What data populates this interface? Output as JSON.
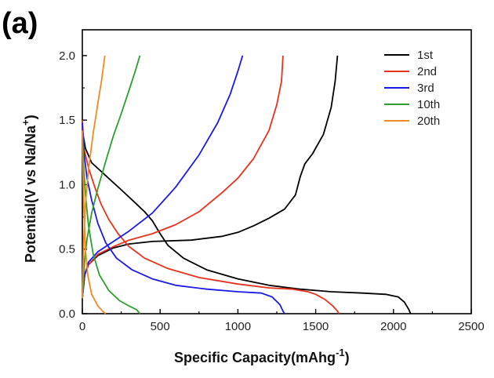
{
  "panel_label": "(a)",
  "chart_data": {
    "type": "line",
    "xlabel": "Specific Capacity(mAhg",
    "xlabel_sup": "-1",
    "xlabel_tail": ")",
    "ylabel": "Potential(V vs Na/Na",
    "ylabel_sup": "+",
    "ylabel_tail": ")",
    "xlim": [
      0,
      2500
    ],
    "ylim": [
      0,
      2.2
    ],
    "xticks": [
      0,
      500,
      1000,
      1500,
      2000,
      2500
    ],
    "xtick_labels": [
      "0",
      "500",
      "1000",
      "1500",
      "2000",
      "2500"
    ],
    "yticks": [
      0,
      0.5,
      1.0,
      1.5,
      2.0
    ],
    "ytick_labels": [
      "0.0",
      "0.5",
      "1.0",
      "1.5",
      "2.0"
    ],
    "grid": false,
    "legend_position": "top-right",
    "series": [
      {
        "name": "1st",
        "color": "#000000",
        "discharge": [
          [
            0,
            1.42
          ],
          [
            20,
            1.28
          ],
          [
            60,
            1.17
          ],
          [
            150,
            1.07
          ],
          [
            250,
            0.96
          ],
          [
            330,
            0.87
          ],
          [
            400,
            0.79
          ],
          [
            450,
            0.72
          ],
          [
            500,
            0.62
          ],
          [
            550,
            0.53
          ],
          [
            650,
            0.43
          ],
          [
            800,
            0.34
          ],
          [
            1000,
            0.27
          ],
          [
            1200,
            0.22
          ],
          [
            1400,
            0.19
          ],
          [
            1600,
            0.17
          ],
          [
            1800,
            0.16
          ],
          [
            1950,
            0.15
          ],
          [
            2030,
            0.13
          ],
          [
            2070,
            0.09
          ],
          [
            2100,
            0.03
          ],
          [
            2110,
            0
          ]
        ],
        "charge": [
          [
            0,
            0.12
          ],
          [
            15,
            0.3
          ],
          [
            40,
            0.38
          ],
          [
            100,
            0.45
          ],
          [
            200,
            0.51
          ],
          [
            300,
            0.54
          ],
          [
            450,
            0.56
          ],
          [
            700,
            0.57
          ],
          [
            900,
            0.6
          ],
          [
            1000,
            0.63
          ],
          [
            1100,
            0.68
          ],
          [
            1200,
            0.74
          ],
          [
            1300,
            0.81
          ],
          [
            1370,
            0.92
          ],
          [
            1400,
            1.06
          ],
          [
            1430,
            1.16
          ],
          [
            1480,
            1.24
          ],
          [
            1550,
            1.39
          ],
          [
            1600,
            1.6
          ],
          [
            1625,
            1.8
          ],
          [
            1640,
            2.0
          ]
        ]
      },
      {
        "name": "2nd",
        "color": "#e8321e",
        "discharge": [
          [
            0,
            1.5
          ],
          [
            10,
            1.28
          ],
          [
            40,
            1.13
          ],
          [
            80,
            0.98
          ],
          [
            120,
            0.85
          ],
          [
            170,
            0.73
          ],
          [
            230,
            0.62
          ],
          [
            300,
            0.52
          ],
          [
            400,
            0.43
          ],
          [
            550,
            0.35
          ],
          [
            750,
            0.28
          ],
          [
            1000,
            0.23
          ],
          [
            1200,
            0.2
          ],
          [
            1350,
            0.19
          ],
          [
            1450,
            0.17
          ],
          [
            1500,
            0.15
          ],
          [
            1560,
            0.11
          ],
          [
            1610,
            0.06
          ],
          [
            1640,
            0.02
          ],
          [
            1650,
            0
          ]
        ],
        "charge": [
          [
            0,
            0.12
          ],
          [
            15,
            0.3
          ],
          [
            40,
            0.38
          ],
          [
            100,
            0.46
          ],
          [
            200,
            0.52
          ],
          [
            300,
            0.57
          ],
          [
            450,
            0.62
          ],
          [
            600,
            0.69
          ],
          [
            750,
            0.79
          ],
          [
            900,
            0.94
          ],
          [
            1000,
            1.05
          ],
          [
            1100,
            1.2
          ],
          [
            1200,
            1.42
          ],
          [
            1250,
            1.62
          ],
          [
            1280,
            1.8
          ],
          [
            1290,
            2.0
          ]
        ]
      },
      {
        "name": "3rd",
        "color": "#1a1ae8",
        "discharge": [
          [
            0,
            1.48
          ],
          [
            10,
            1.25
          ],
          [
            30,
            1.05
          ],
          [
            60,
            0.88
          ],
          [
            100,
            0.7
          ],
          [
            150,
            0.55
          ],
          [
            220,
            0.43
          ],
          [
            320,
            0.34
          ],
          [
            450,
            0.27
          ],
          [
            600,
            0.22
          ],
          [
            800,
            0.19
          ],
          [
            1000,
            0.17
          ],
          [
            1150,
            0.16
          ],
          [
            1220,
            0.13
          ],
          [
            1270,
            0.07
          ],
          [
            1290,
            0.02
          ],
          [
            1300,
            0
          ]
        ],
        "charge": [
          [
            0,
            0.12
          ],
          [
            15,
            0.3
          ],
          [
            40,
            0.4
          ],
          [
            100,
            0.48
          ],
          [
            200,
            0.56
          ],
          [
            300,
            0.64
          ],
          [
            450,
            0.78
          ],
          [
            600,
            0.98
          ],
          [
            750,
            1.23
          ],
          [
            870,
            1.48
          ],
          [
            950,
            1.7
          ],
          [
            1000,
            1.88
          ],
          [
            1030,
            2.0
          ]
        ]
      },
      {
        "name": "10th",
        "color": "#2e9e2e",
        "discharge": [
          [
            0,
            1.4
          ],
          [
            8,
            1.15
          ],
          [
            20,
            0.92
          ],
          [
            40,
            0.68
          ],
          [
            70,
            0.46
          ],
          [
            110,
            0.3
          ],
          [
            170,
            0.18
          ],
          [
            240,
            0.1
          ],
          [
            300,
            0.06
          ],
          [
            350,
            0.03
          ],
          [
            370,
            0
          ]
        ],
        "charge": [
          [
            0,
            0.12
          ],
          [
            15,
            0.42
          ],
          [
            30,
            0.58
          ],
          [
            60,
            0.78
          ],
          [
            100,
            0.97
          ],
          [
            150,
            1.18
          ],
          [
            200,
            1.38
          ],
          [
            250,
            1.55
          ],
          [
            300,
            1.73
          ],
          [
            340,
            1.88
          ],
          [
            370,
            2.0
          ]
        ]
      },
      {
        "name": "20th",
        "color": "#f08a24",
        "discharge": [
          [
            0,
            1.42
          ],
          [
            4,
            1.1
          ],
          [
            10,
            0.8
          ],
          [
            20,
            0.5
          ],
          [
            35,
            0.3
          ],
          [
            60,
            0.15
          ],
          [
            100,
            0.06
          ],
          [
            130,
            0.02
          ],
          [
            150,
            0
          ]
        ],
        "charge": [
          [
            0,
            0.12
          ],
          [
            8,
            0.55
          ],
          [
            20,
            0.85
          ],
          [
            40,
            1.12
          ],
          [
            70,
            1.4
          ],
          [
            100,
            1.63
          ],
          [
            125,
            1.82
          ],
          [
            145,
            2.0
          ]
        ]
      }
    ]
  }
}
